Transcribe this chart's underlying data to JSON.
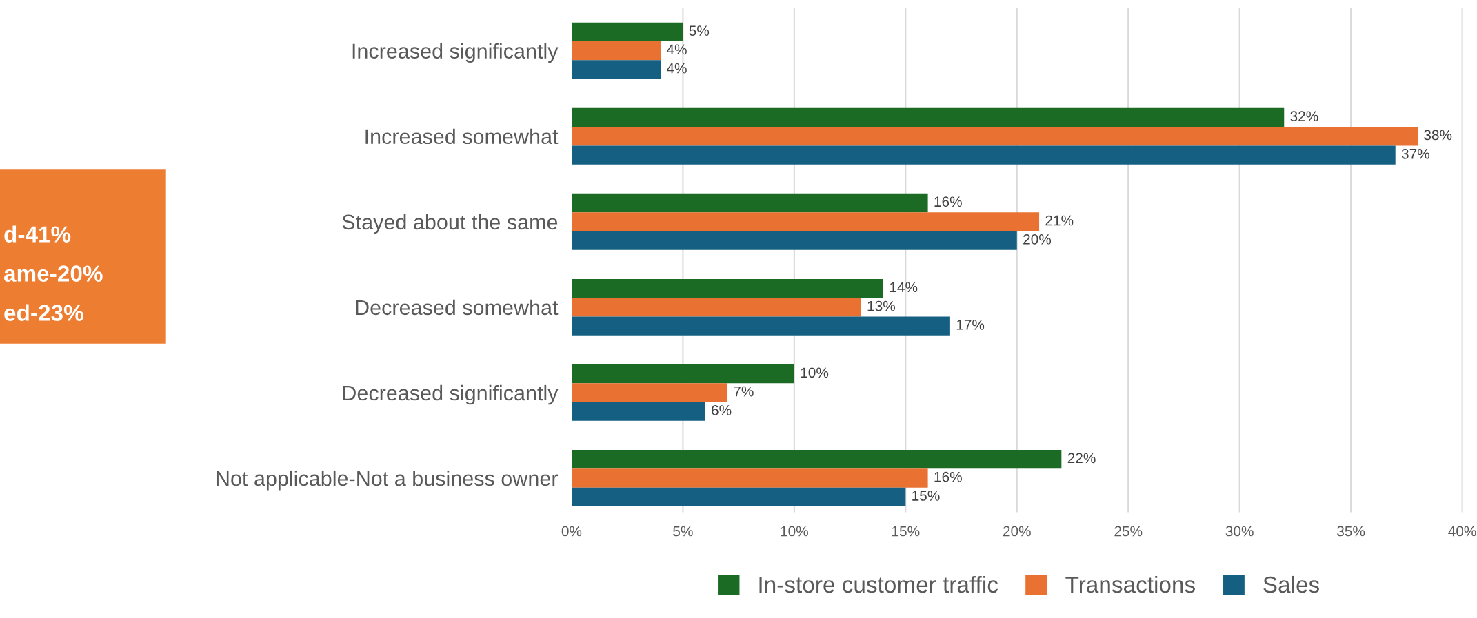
{
  "chart_data": {
    "type": "bar",
    "orientation": "horizontal",
    "categories": [
      "Increased significantly",
      "Increased somewhat",
      "Stayed about the same",
      "Decreased somewhat",
      "Decreased significantly",
      "Not applicable-Not a business owner"
    ],
    "series": [
      {
        "name": "In-store customer traffic",
        "color": "#1b6b25",
        "values": [
          5,
          32,
          16,
          14,
          10,
          22
        ],
        "value_labels": [
          "5%",
          "32%",
          "16%",
          "14%",
          "10%",
          "22%"
        ]
      },
      {
        "name": "Transactions",
        "color": "#e97132",
        "values": [
          4,
          38,
          21,
          13,
          7,
          16
        ],
        "value_labels": [
          "4%",
          "38%",
          "21%",
          "13%",
          "7%",
          "16%"
        ]
      },
      {
        "name": "Sales",
        "color": "#156082",
        "values": [
          4,
          37,
          20,
          17,
          6,
          15
        ],
        "value_labels": [
          "4%",
          "37%",
          "20%",
          "17%",
          "6%",
          "15%"
        ]
      }
    ],
    "xlim": [
      0,
      40
    ],
    "xticks": [
      {
        "value": 0,
        "label": "0%"
      },
      {
        "value": 5,
        "label": "5%"
      },
      {
        "value": 10,
        "label": "10%"
      },
      {
        "value": 15,
        "label": "15%"
      },
      {
        "value": 20,
        "label": "20%"
      },
      {
        "value": 25,
        "label": "25%"
      },
      {
        "value": 30,
        "label": "30%"
      },
      {
        "value": 35,
        "label": "35%"
      },
      {
        "value": 40,
        "label": "40%"
      }
    ],
    "grid": "x",
    "legend": "bottom",
    "annotations": [
      "d-41%",
      "ame-20%",
      "ed-23%"
    ]
  }
}
